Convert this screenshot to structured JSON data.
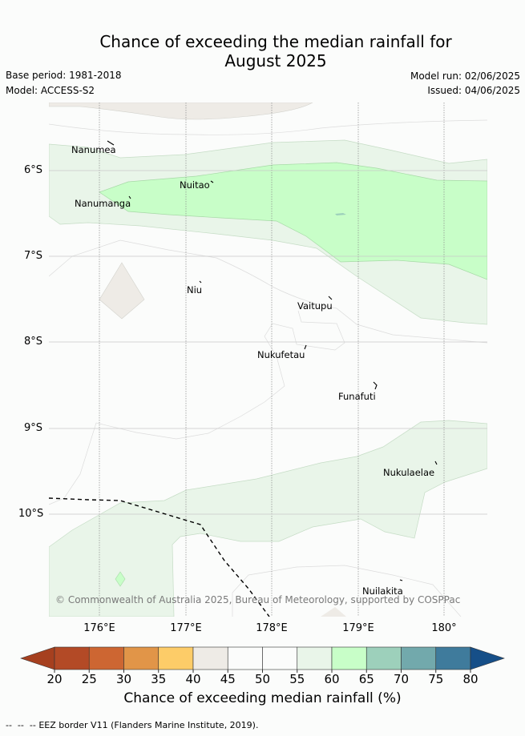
{
  "title_line1": "Chance of exceeding the median rainfall for",
  "title_line2": "August 2025",
  "base_period": "Base period: 1981-2018",
  "model": "Model: ACCESS-S2",
  "model_run": "Model run: 02/06/2025",
  "issued": "Issued: 04/06/2025",
  "copyright": "© Commonwealth of Australia 2025, Bureau of Meteorology, supported by COSPPac",
  "lat_ticks": [
    "6°S",
    "7°S",
    "8°S",
    "9°S",
    "10°S"
  ],
  "lon_ticks": [
    "176°E",
    "177°E",
    "178°E",
    "179°E",
    "180°"
  ],
  "islands": [
    "Nanumea",
    "Nuitao",
    "Nanumanga",
    "Niu",
    "Vaitupu",
    "Nukufetau",
    "Funafuti",
    "Nukulaelae",
    "Nuilakita"
  ],
  "colorbar": {
    "title": "Chance of exceeding median rainfall (%)",
    "labels": [
      "20",
      "25",
      "30",
      "35",
      "40",
      "45",
      "50",
      "55",
      "60",
      "65",
      "70",
      "75",
      "80"
    ],
    "colors": [
      "#b34a26",
      "#cd6632",
      "#e19548",
      "#fdcc68",
      "#eeebe6",
      "#fbfcfb",
      "#fbfcfb",
      "#e9f5e9",
      "#c8fec8",
      "#9dd0bb",
      "#72a9ac",
      "#3f7b9c"
    ],
    "under_color": "#a6401f",
    "over_color": "#164f88"
  },
  "eez_label": "EEZ border V11 (Flanders Marine Institute, 2019)."
}
